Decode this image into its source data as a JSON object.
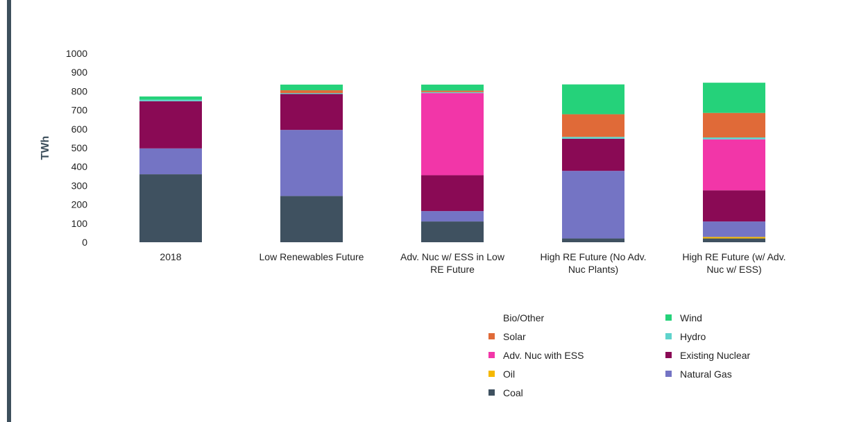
{
  "chart_data": {
    "type": "bar",
    "stacked": true,
    "ylabel": "TWh",
    "ylim": [
      0,
      1000
    ],
    "yticks": [
      0,
      100,
      200,
      300,
      400,
      500,
      600,
      700,
      800,
      900,
      1000
    ],
    "categories": [
      [
        "2018"
      ],
      [
        "Low Renewables Future"
      ],
      [
        "Adv. Nuc  w/ ESS in Low",
        "RE Future"
      ],
      [
        "High RE Future (No Adv.",
        "Nuc Plants)"
      ],
      [
        "High RE Future (w/ Adv.",
        "Nuc w/ ESS)"
      ]
    ],
    "series": [
      {
        "name": "Coal",
        "color": "#3f5160",
        "values": [
          360,
          245,
          110,
          20,
          20
        ]
      },
      {
        "name": "Oil",
        "color": "#f5b800",
        "values": [
          0,
          0,
          0,
          0,
          8
        ]
      },
      {
        "name": "Natural Gas",
        "color": "#7474c4",
        "values": [
          137,
          350,
          55,
          358,
          82
        ]
      },
      {
        "name": "Existing Nuclear",
        "color": "#8a0a55",
        "values": [
          250,
          190,
          190,
          170,
          165
        ]
      },
      {
        "name": "Adv. Nuc with ESS",
        "color": "#f236a8",
        "values": [
          0,
          0,
          435,
          0,
          270
        ]
      },
      {
        "name": "Hydro",
        "color": "#5fd3cc",
        "values": [
          8,
          5,
          5,
          10,
          10
        ]
      },
      {
        "name": "Solar",
        "color": "#e06a38",
        "values": [
          0,
          15,
          8,
          120,
          130
        ]
      },
      {
        "name": "Wind",
        "color": "#25d27a",
        "values": [
          17,
          30,
          32,
          158,
          160
        ]
      },
      {
        "name": "Bio/Other",
        "color": "#ffffff",
        "values": [
          0,
          0,
          0,
          0,
          0
        ]
      }
    ],
    "legend": {
      "placement": "bottom-right",
      "items": [
        {
          "name": "Bio/Other",
          "color": "#ffffff"
        },
        {
          "name": "Wind",
          "color": "#25d27a"
        },
        {
          "name": "Solar",
          "color": "#e06a38"
        },
        {
          "name": "Hydro",
          "color": "#5fd3cc"
        },
        {
          "name": "Adv. Nuc with ESS",
          "color": "#f236a8"
        },
        {
          "name": "Existing Nuclear",
          "color": "#8a0a55"
        },
        {
          "name": "Oil",
          "color": "#f5b800"
        },
        {
          "name": "Natural Gas",
          "color": "#7474c4"
        },
        {
          "name": "Coal",
          "color": "#3f5160"
        }
      ]
    }
  }
}
